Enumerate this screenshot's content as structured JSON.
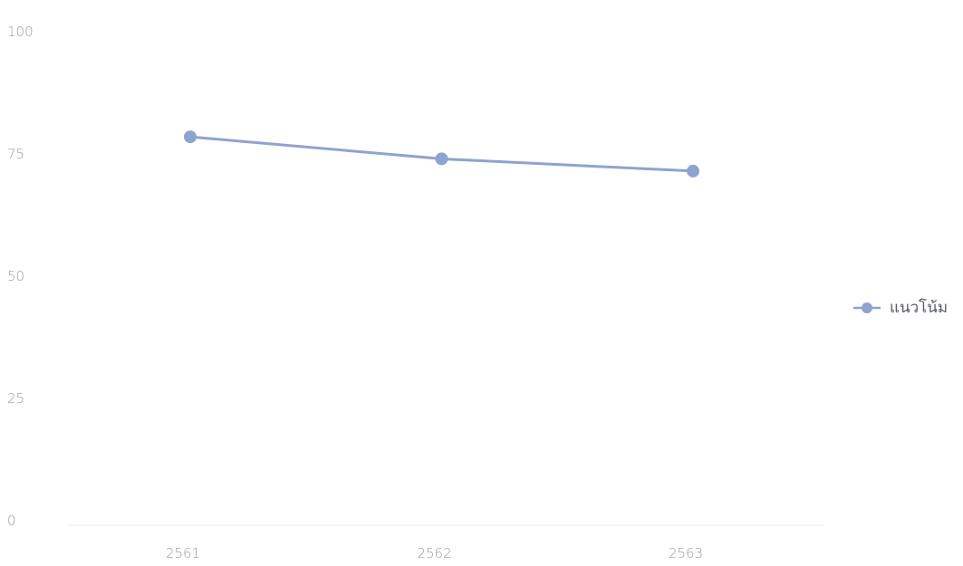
{
  "chart_data": {
    "type": "line",
    "x": [
      "2561",
      "2562",
      "2563"
    ],
    "series": [
      {
        "name": "แนวโน้ม",
        "values": [
          78.5,
          74,
          71.5
        ],
        "color": "#8ea3cf"
      }
    ],
    "ylim": [
      0,
      100
    ],
    "yticks": [
      0,
      25,
      50,
      75,
      100
    ],
    "xlabel": "",
    "ylabel": "",
    "title": "",
    "grid": false,
    "legend_position": "right"
  }
}
